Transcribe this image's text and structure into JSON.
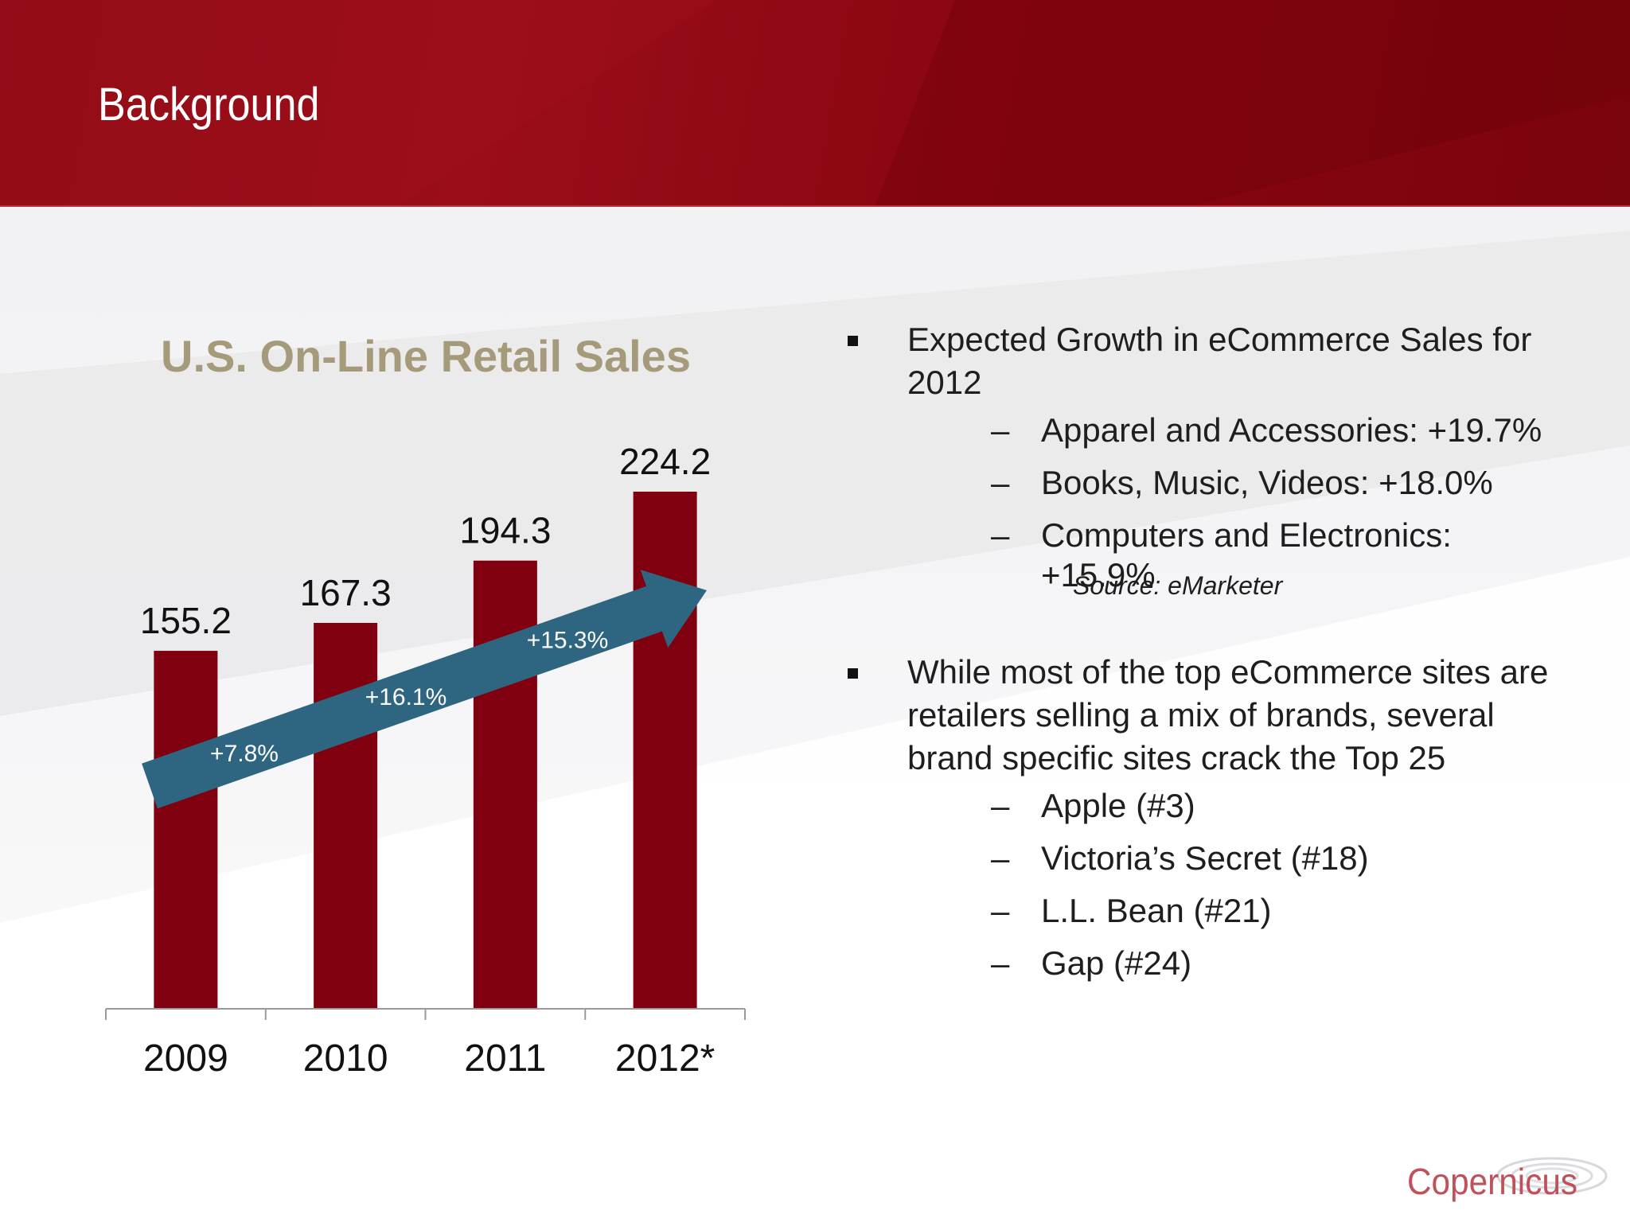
{
  "header": {
    "title": "Background"
  },
  "chart_data": {
    "type": "bar",
    "title": "U.S. On-Line Retail Sales",
    "categories": [
      "2009",
      "2010",
      "2011",
      "2012*"
    ],
    "values": [
      155.2,
      167.3,
      194.3,
      224.2
    ],
    "value_labels": [
      "155.2",
      "167.3",
      "194.3",
      "224.2"
    ],
    "bar_color": "#800010",
    "ylim": [
      0,
      224.2
    ],
    "growth_arrow": {
      "color": "#2e6682",
      "labels": [
        "+7.8%",
        "+16.1%",
        "+15.3%"
      ]
    },
    "grid": false,
    "legend": "none"
  },
  "bullets": [
    {
      "text": "Expected Growth in eCommerce Sales for 2012",
      "subitems": [
        "Apparel and Accessories: +19.7%",
        "Books, Music, Videos:  +18.0%",
        "Computers and Electronics: +15.9%"
      ],
      "source": "Source:  eMarketer"
    },
    {
      "text": "While most of the top eCommerce sites are retailers selling a mix of brands, several brand specific sites crack the Top 25",
      "subitems": [
        "Apple (#3)",
        "Victoria’s Secret (#18)",
        "L.L. Bean (#21)",
        "Gap (#24)"
      ]
    }
  ],
  "sub_dash": "–",
  "logo": {
    "text": "Copernicus",
    "color": "#c0505a"
  }
}
